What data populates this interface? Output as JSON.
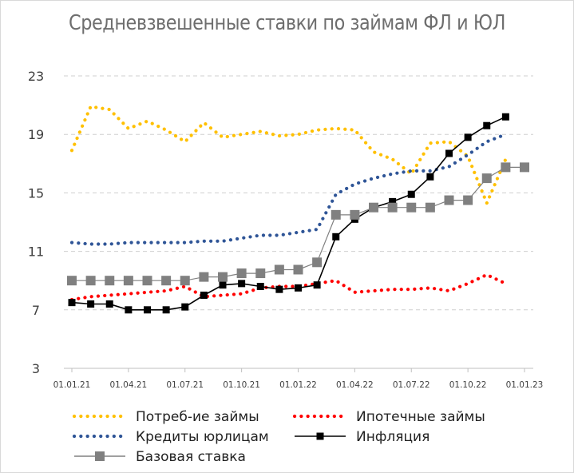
{
  "chart_data": {
    "type": "line",
    "title": "Средневзвешенные ставки по займам ФЛ и ЮЛ",
    "xlabel": "",
    "ylabel": "",
    "ylim": [
      3,
      23
    ],
    "yticks": [
      "3",
      "7",
      "11",
      "15",
      "19",
      "23"
    ],
    "xticks": [
      "01.01.21",
      "01.04.21",
      "01.07.21",
      "01.10.21",
      "01.01.22",
      "01.04.22",
      "01.07.22",
      "01.10.22",
      "01.01.23"
    ],
    "grid": "horizontal dashed",
    "legend_position": "bottom",
    "x": [
      "2021-01",
      "2021-02",
      "2021-03",
      "2021-04",
      "2021-05",
      "2021-06",
      "2021-07",
      "2021-08",
      "2021-09",
      "2021-10",
      "2021-11",
      "2021-12",
      "2022-01",
      "2022-02",
      "2022-03",
      "2022-04",
      "2022-05",
      "2022-06",
      "2022-07",
      "2022-08",
      "2022-09",
      "2022-10",
      "2022-11",
      "2022-12",
      "2023-01"
    ],
    "series": [
      {
        "name": "Потреб-ие займы",
        "color": "#ffc000",
        "style": "dotted",
        "values": [
          17.9,
          20.9,
          20.7,
          19.4,
          19.9,
          19.3,
          18.5,
          19.8,
          18.8,
          19.0,
          19.2,
          18.9,
          19.0,
          19.3,
          19.4,
          19.3,
          17.8,
          17.3,
          16.3,
          18.4,
          18.5,
          17.5,
          14.3,
          17.3,
          null
        ]
      },
      {
        "name": "Ипотечные займы",
        "color": "#ff0000",
        "style": "dotted",
        "values": [
          7.7,
          7.9,
          8.0,
          8.1,
          8.2,
          8.3,
          8.6,
          7.9,
          8.0,
          8.1,
          8.5,
          8.6,
          8.6,
          8.8,
          9.0,
          8.2,
          8.3,
          8.4,
          8.4,
          8.5,
          8.3,
          8.8,
          9.4,
          8.8,
          null
        ]
      },
      {
        "name": "Кредиты юрлицам",
        "color": "#2f5597",
        "style": "dotted",
        "values": [
          11.6,
          11.5,
          11.5,
          11.6,
          11.6,
          11.6,
          11.6,
          11.7,
          11.7,
          11.9,
          12.1,
          12.1,
          12.3,
          12.5,
          14.9,
          15.6,
          16.0,
          16.3,
          16.5,
          16.5,
          16.8,
          17.6,
          18.5,
          19.0,
          null
        ]
      },
      {
        "name": "Инфляция",
        "color": "#000000",
        "style": "solid-square",
        "values": [
          7.5,
          7.4,
          7.4,
          7.0,
          7.0,
          7.0,
          7.2,
          8.0,
          8.7,
          8.8,
          8.6,
          8.4,
          8.5,
          8.7,
          12.0,
          13.2,
          14.0,
          14.4,
          14.9,
          16.1,
          17.7,
          18.8,
          19.6,
          20.2,
          null
        ]
      },
      {
        "name": "Базовая ставка",
        "color": "#808080",
        "style": "solid-square",
        "values": [
          9.0,
          9.0,
          9.0,
          9.0,
          9.0,
          9.0,
          9.0,
          9.25,
          9.25,
          9.5,
          9.5,
          9.75,
          9.75,
          10.25,
          13.5,
          13.5,
          14.0,
          14.0,
          14.0,
          14.0,
          14.5,
          14.5,
          16.0,
          16.75,
          16.75
        ]
      }
    ]
  }
}
